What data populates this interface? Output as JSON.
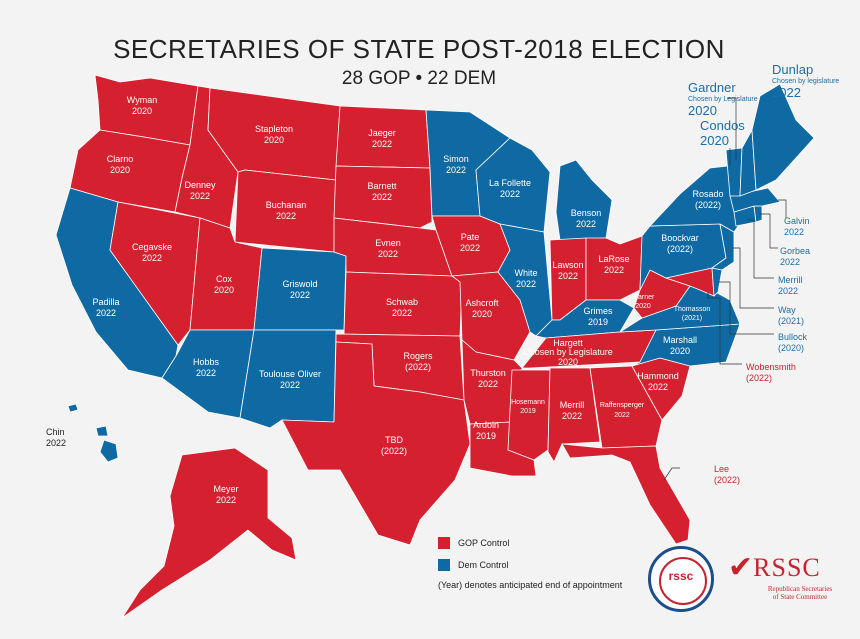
{
  "title": "SECRETARIES OF STATE POST-2018 ELECTION",
  "subtitle": "28 GOP  •  22 DEM",
  "colors": {
    "gop": "#d4202f",
    "dem": "#0f6aa4",
    "background": "#f3f3f3",
    "border": "#ffffff"
  },
  "states": {
    "wa": {
      "name": "Wyman",
      "year": "2020",
      "party": "gop"
    },
    "or": {
      "name": "Clarno",
      "year": "2020",
      "party": "gop"
    },
    "ca": {
      "name": "Padilla",
      "year": "2022",
      "party": "dem"
    },
    "nv": {
      "name": "Cegavske",
      "year": "2022",
      "party": "gop"
    },
    "id": {
      "name": "Denney",
      "year": "2022",
      "party": "gop"
    },
    "mt": {
      "name": "Stapleton",
      "year": "2020",
      "party": "gop"
    },
    "wy": {
      "name": "Buchanan",
      "year": "2022",
      "party": "gop"
    },
    "ut": {
      "name": "Cox",
      "year": "2020",
      "party": "gop"
    },
    "az": {
      "name": "Hobbs",
      "year": "2022",
      "party": "dem"
    },
    "co": {
      "name": "Griswold",
      "year": "2022",
      "party": "dem"
    },
    "nm": {
      "name": "Toulouse Oliver",
      "year": "2022",
      "party": "dem"
    },
    "nd": {
      "name": "Jaeger",
      "year": "2022",
      "party": "gop"
    },
    "sd": {
      "name": "Barnett",
      "year": "2022",
      "party": "gop"
    },
    "ne": {
      "name": "Evnen",
      "year": "2022",
      "party": "gop"
    },
    "ks": {
      "name": "Schwab",
      "year": "2022",
      "party": "gop"
    },
    "ok": {
      "name": "Rogers",
      "year": "(2022)",
      "party": "gop"
    },
    "tx": {
      "name": "TBD",
      "year": "(2022)",
      "party": "gop"
    },
    "mn": {
      "name": "Simon",
      "year": "2022",
      "party": "dem"
    },
    "ia": {
      "name": "Pate",
      "year": "2022",
      "party": "gop"
    },
    "mo": {
      "name": "Ashcroft",
      "year": "2020",
      "party": "gop"
    },
    "ar": {
      "name": "Thurston",
      "year": "2022",
      "party": "gop"
    },
    "la": {
      "name": "Ardoin",
      "year": "2019",
      "party": "gop"
    },
    "wi": {
      "name": "La Follette",
      "year": "2022",
      "party": "dem"
    },
    "il": {
      "name": "White",
      "year": "2022",
      "party": "dem"
    },
    "mi": {
      "name": "Benson",
      "year": "2022",
      "party": "dem"
    },
    "in": {
      "name": "Lawson",
      "year": "2022",
      "party": "gop"
    },
    "oh": {
      "name": "LaRose",
      "year": "2022",
      "party": "gop"
    },
    "ky": {
      "name": "Grimes",
      "year": "2019",
      "party": "dem"
    },
    "tn": {
      "name": "Hargett",
      "note": "Chosen by Legislature",
      "year": "2020",
      "party": "gop"
    },
    "ms": {
      "name": "Hosemann",
      "year": "2019",
      "party": "gop"
    },
    "al": {
      "name": "Merrill",
      "year": "2022",
      "party": "gop"
    },
    "ga": {
      "name": "Raffensperger",
      "year": "2022",
      "party": "gop"
    },
    "fl": {
      "name": "Lee",
      "year": "(2022)",
      "party": "gop"
    },
    "sc": {
      "name": "Hammond",
      "year": "2022",
      "party": "gop"
    },
    "nc": {
      "name": "Marshall",
      "year": "2020",
      "party": "dem"
    },
    "va": {
      "name": "Thomasson",
      "year": "(2021)",
      "party": "dem"
    },
    "wv": {
      "name": "Warner",
      "year": "2020",
      "party": "gop"
    },
    "pa": {
      "name": "Boockvar",
      "year": "(2022)",
      "party": "dem"
    },
    "ny": {
      "name": "Rosado",
      "year": "(2022)",
      "party": "dem"
    },
    "me": {
      "name": "Dunlap",
      "note": "Chosen by legislature",
      "year": "2022",
      "party": "dem"
    },
    "nh": {
      "name": "Gardner",
      "note": "Chosen by Legislature",
      "year": "2020",
      "party": "dem"
    },
    "vt": {
      "name": "Condos",
      "year": "2020",
      "party": "dem"
    },
    "ma": {
      "name": "Galvin",
      "year": "2022",
      "party": "dem"
    },
    "ri": {
      "name": "Gorbea",
      "year": "2022",
      "party": "dem"
    },
    "ct": {
      "name": "Merrill",
      "year": "2022",
      "party": "dem"
    },
    "nj": {
      "name": "Way",
      "year": "(2021)",
      "party": "dem"
    },
    "de": {
      "name": "Bullock",
      "year": "(2020)",
      "party": "dem"
    },
    "md": {
      "name": "Wobensmith",
      "year": "(2022)",
      "party": "gop"
    },
    "hi": {
      "name": "Chin",
      "year": "2022",
      "party": "dem"
    },
    "ak": {
      "name": "Meyer",
      "year": "2022",
      "party": "gop"
    }
  },
  "legend": {
    "gop_label": "GOP Control",
    "dem_label": "Dem Control",
    "note": "(Year) denotes anticipated end of appointment"
  },
  "logo": {
    "seal_text": "rssc",
    "name": "RSSC",
    "line1": "Republican Secretaries",
    "line2": "of State Committee"
  }
}
